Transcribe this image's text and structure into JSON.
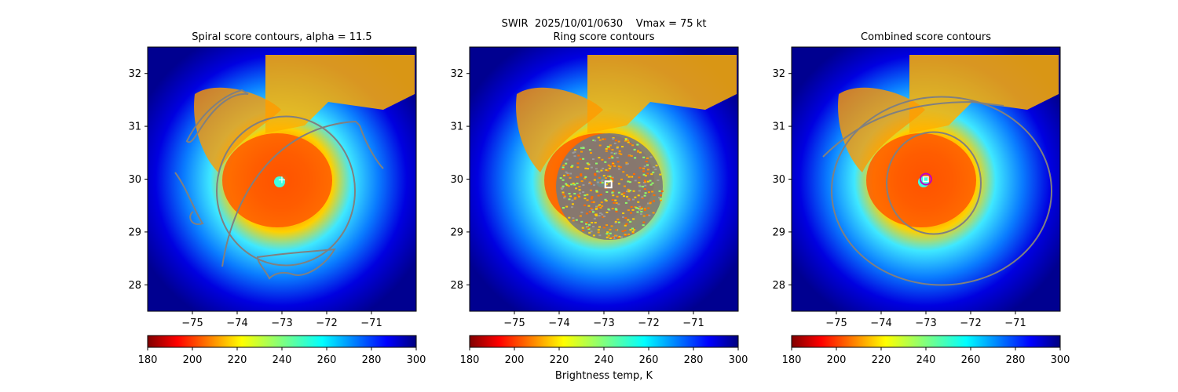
{
  "suptitle": "SWIR  2025/10/01/0630    Vmax = 75 kt",
  "colorbar_label": "Brightness temp, K",
  "colors": {
    "contour": "#808080",
    "center_marker": "#ffffff",
    "combined_circle": "#c000c0"
  },
  "chart_data": [
    {
      "type": "heatmap",
      "title": "Spiral score contours, alpha = 11.5",
      "xlim": [
        -76,
        -70
      ],
      "ylim": [
        27.5,
        32.5
      ],
      "xticks": [
        -75,
        -74,
        -73,
        -72,
        -71
      ],
      "yticks": [
        28,
        29,
        30,
        31,
        32
      ],
      "colorbar": {
        "ticks": [
          180,
          200,
          220,
          240,
          260,
          280,
          300
        ],
        "range": [
          180,
          300
        ],
        "cmap": "jet_r"
      },
      "center": [
        -73.0,
        30.0
      ]
    },
    {
      "type": "heatmap",
      "title": "Ring score contours",
      "xlim": [
        -76,
        -70
      ],
      "ylim": [
        27.5,
        32.5
      ],
      "xticks": [
        -75,
        -74,
        -73,
        -72,
        -71
      ],
      "yticks": [
        28,
        29,
        30,
        31,
        32
      ],
      "colorbar": {
        "ticks": [
          180,
          200,
          220,
          240,
          260,
          280,
          300
        ],
        "range": [
          180,
          300
        ],
        "cmap": "jet_r"
      },
      "center": [
        -72.9,
        29.9
      ]
    },
    {
      "type": "heatmap",
      "title": "Combined score contours",
      "xlim": [
        -76,
        -70
      ],
      "ylim": [
        27.5,
        32.5
      ],
      "xticks": [
        -75,
        -74,
        -73,
        -72,
        -71
      ],
      "yticks": [
        28,
        29,
        30,
        31,
        32
      ],
      "colorbar": {
        "ticks": [
          180,
          200,
          220,
          240,
          260,
          280,
          300
        ],
        "range": [
          180,
          300
        ],
        "cmap": "jet_r"
      },
      "center": [
        -73.0,
        30.0
      ]
    }
  ]
}
